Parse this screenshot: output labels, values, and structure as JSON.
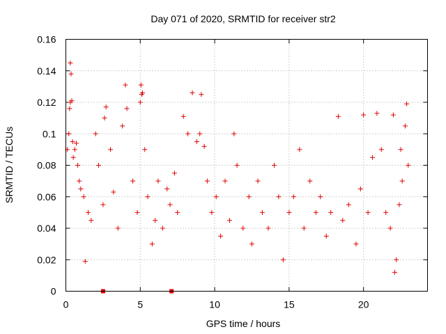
{
  "chart_data": {
    "type": "scatter",
    "title": "Day 071 of 2020, SRMTID for receiver str2",
    "xlabel": "GPS time / hours",
    "ylabel": "SRMTID / TECUs",
    "xlim": [
      0,
      24.3
    ],
    "ylim": [
      0,
      0.16
    ],
    "x_ticks": [
      0,
      5,
      10,
      15,
      20
    ],
    "y_ticks": [
      0,
      0.02,
      0.04,
      0.06,
      0.08,
      0.1,
      0.12,
      0.14,
      0.16
    ],
    "x_tick_labels": [
      "0",
      "5",
      "10",
      "15",
      "20"
    ],
    "y_tick_labels": [
      "0",
      "0.02",
      "0.04",
      "0.06",
      "0.08",
      "0.1",
      "0.12",
      "0.14",
      "0.16"
    ],
    "grid": true,
    "marker": "plus",
    "color": "#e00000",
    "series": [
      {
        "points": [
          [
            0.1,
            0.09
          ],
          [
            0.2,
            0.1
          ],
          [
            0.3,
            0.145
          ],
          [
            0.35,
            0.138
          ],
          [
            0.4,
            0.121
          ],
          [
            0.3,
            0.12
          ],
          [
            0.25,
            0.116
          ],
          [
            0.45,
            0.095
          ],
          [
            0.5,
            0.085
          ],
          [
            0.6,
            0.09
          ],
          [
            0.7,
            0.094
          ],
          [
            0.8,
            0.08
          ],
          [
            0.9,
            0.07
          ],
          [
            1.0,
            0.065
          ],
          [
            1.2,
            0.06
          ],
          [
            1.3,
            0.019
          ],
          [
            1.5,
            0.05
          ],
          [
            1.7,
            0.045
          ],
          [
            2.0,
            0.1
          ],
          [
            2.2,
            0.08
          ],
          [
            2.5,
            0.055
          ],
          [
            2.6,
            0.11
          ],
          [
            2.7,
            0.117
          ],
          [
            3.0,
            0.09
          ],
          [
            3.2,
            0.063
          ],
          [
            3.5,
            0.04
          ],
          [
            3.8,
            0.105
          ],
          [
            4.0,
            0.131
          ],
          [
            4.1,
            0.116
          ],
          [
            4.5,
            0.07
          ],
          [
            4.8,
            0.05
          ],
          [
            5.0,
            0.12
          ],
          [
            5.05,
            0.131
          ],
          [
            5.1,
            0.125
          ],
          [
            5.15,
            0.126
          ],
          [
            5.3,
            0.09
          ],
          [
            5.5,
            0.06
          ],
          [
            5.8,
            0.03
          ],
          [
            6.0,
            0.045
          ],
          [
            6.2,
            0.07
          ],
          [
            6.5,
            0.04
          ],
          [
            6.8,
            0.065
          ],
          [
            7.0,
            0.055
          ],
          [
            7.3,
            0.075
          ],
          [
            7.5,
            0.05
          ],
          [
            7.9,
            0.111
          ],
          [
            8.2,
            0.1
          ],
          [
            8.5,
            0.126
          ],
          [
            8.8,
            0.095
          ],
          [
            9.0,
            0.1
          ],
          [
            9.1,
            0.125
          ],
          [
            9.3,
            0.092
          ],
          [
            9.5,
            0.07
          ],
          [
            9.8,
            0.05
          ],
          [
            10.1,
            0.06
          ],
          [
            10.4,
            0.035
          ],
          [
            10.7,
            0.07
          ],
          [
            11.0,
            0.045
          ],
          [
            11.3,
            0.1
          ],
          [
            11.5,
            0.08
          ],
          [
            11.9,
            0.04
          ],
          [
            12.3,
            0.06
          ],
          [
            12.5,
            0.03
          ],
          [
            12.9,
            0.07
          ],
          [
            13.2,
            0.05
          ],
          [
            13.6,
            0.04
          ],
          [
            14.0,
            0.08
          ],
          [
            14.3,
            0.06
          ],
          [
            14.6,
            0.02
          ],
          [
            15.0,
            0.05
          ],
          [
            15.3,
            0.06
          ],
          [
            15.7,
            0.09
          ],
          [
            16.0,
            0.04
          ],
          [
            16.4,
            0.07
          ],
          [
            16.8,
            0.05
          ],
          [
            17.1,
            0.06
          ],
          [
            17.5,
            0.035
          ],
          [
            17.8,
            0.05
          ],
          [
            18.3,
            0.111
          ],
          [
            18.6,
            0.045
          ],
          [
            19.0,
            0.055
          ],
          [
            19.5,
            0.03
          ],
          [
            19.8,
            0.065
          ],
          [
            20.0,
            0.112
          ],
          [
            20.3,
            0.05
          ],
          [
            20.6,
            0.085
          ],
          [
            20.9,
            0.113
          ],
          [
            21.2,
            0.09
          ],
          [
            21.5,
            0.05
          ],
          [
            21.8,
            0.04
          ],
          [
            22.0,
            0.112
          ],
          [
            22.2,
            0.02
          ],
          [
            22.1,
            0.012
          ],
          [
            22.4,
            0.055
          ],
          [
            22.5,
            0.09
          ],
          [
            22.6,
            0.07
          ],
          [
            22.8,
            0.105
          ],
          [
            22.9,
            0.119
          ],
          [
            23.0,
            0.08
          ]
        ]
      }
    ],
    "gap_markers_x": [
      2.5,
      7.1
    ]
  }
}
